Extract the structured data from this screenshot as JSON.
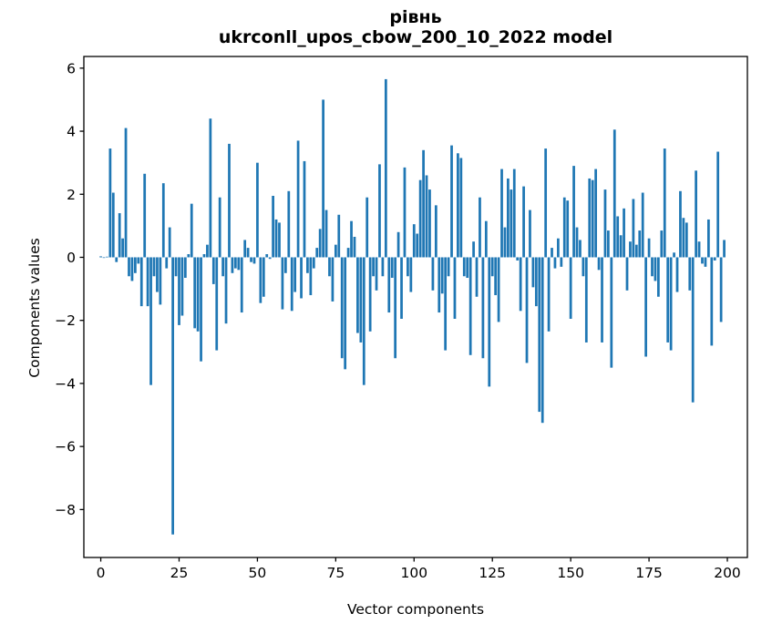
{
  "figure": {
    "background_color": "#ffffff",
    "text_color": "#000000"
  },
  "chart_data": {
    "type": "bar",
    "title_line1": "рівнь",
    "title_line2": "ukrconll_upos_cbow_200_10_2022 model",
    "xlabel": "Vector components",
    "ylabel": "Components values",
    "bar_color": "#1f77b4",
    "axis_color": "#000000",
    "grid": false,
    "legend": null,
    "x_tick_values": [
      0,
      25,
      50,
      75,
      100,
      125,
      150,
      175,
      200
    ],
    "x_tick_labels": [
      "0",
      "25",
      "50",
      "75",
      "100",
      "125",
      "150",
      "175",
      "200"
    ],
    "y_tick_values": [
      6,
      4,
      2,
      0,
      -2,
      -4,
      -6,
      -8
    ],
    "y_tick_labels": [
      "6",
      "4",
      "2",
      "0",
      "−2",
      "−4",
      "−6",
      "−8"
    ],
    "xlim": [
      -5.4,
      206.4
    ],
    "ylim": [
      -9.52,
      6.37
    ],
    "bar_width": 0.8,
    "x": "component index 0..199",
    "values": [
      0.03,
      -0.02,
      0.02,
      3.45,
      2.05,
      -0.15,
      1.4,
      0.6,
      4.1,
      -0.6,
      -0.75,
      -0.5,
      -0.2,
      -1.55,
      2.65,
      -1.55,
      -4.05,
      -0.6,
      -1.1,
      -1.5,
      2.35,
      -0.35,
      0.95,
      -8.79,
      -0.6,
      -2.15,
      -1.85,
      -0.65,
      0.1,
      1.7,
      -2.25,
      -2.35,
      -3.3,
      0.1,
      0.4,
      4.4,
      -0.85,
      -2.95,
      1.9,
      -0.6,
      -2.1,
      3.6,
      -0.5,
      -0.35,
      -0.4,
      -1.75,
      0.55,
      0.3,
      -0.15,
      -0.2,
      3.0,
      -1.45,
      -1.25,
      0.1,
      -0.05,
      1.95,
      1.2,
      1.1,
      -1.65,
      -0.5,
      2.1,
      -1.7,
      -1.1,
      3.7,
      -1.3,
      3.05,
      -0.5,
      -1.2,
      -0.35,
      0.3,
      0.9,
      5.0,
      1.5,
      -0.6,
      -1.4,
      0.4,
      1.35,
      -3.2,
      -3.55,
      0.3,
      1.15,
      0.65,
      -2.4,
      -2.7,
      -4.05,
      1.9,
      -2.35,
      -0.6,
      -1.05,
      2.95,
      -0.6,
      5.65,
      -1.75,
      -0.65,
      -3.2,
      0.8,
      -1.95,
      2.85,
      -0.6,
      -1.1,
      1.05,
      0.75,
      2.45,
      3.4,
      2.6,
      2.15,
      -1.05,
      1.65,
      -1.75,
      -1.15,
      -2.95,
      -0.6,
      3.55,
      -1.95,
      3.3,
      3.15,
      -0.6,
      -0.65,
      -3.1,
      0.5,
      -1.25,
      1.9,
      -3.2,
      1.15,
      -4.1,
      -0.6,
      -1.2,
      -2.05,
      2.8,
      0.95,
      2.5,
      2.15,
      2.8,
      -0.1,
      -1.7,
      2.25,
      -3.35,
      1.5,
      -0.95,
      -1.55,
      -4.9,
      -5.25,
      3.45,
      -2.35,
      0.3,
      -0.35,
      0.6,
      -0.3,
      1.9,
      1.8,
      -1.95,
      2.9,
      0.95,
      0.55,
      -0.6,
      -2.7,
      2.5,
      2.45,
      2.8,
      -0.4,
      -2.7,
      2.15,
      0.85,
      -3.5,
      4.05,
      1.3,
      0.7,
      1.55,
      -1.05,
      0.5,
      1.85,
      0.4,
      0.85,
      2.05,
      -3.15,
      0.6,
      -0.6,
      -0.75,
      -1.25,
      0.85,
      3.45,
      -2.7,
      -2.95,
      0.15,
      -1.1,
      2.1,
      1.25,
      1.1,
      -1.05,
      -4.6,
      2.75,
      0.5,
      -0.2,
      -0.3,
      1.2,
      -2.8,
      -0.1,
      3.35,
      -2.05,
      0.55
    ]
  }
}
